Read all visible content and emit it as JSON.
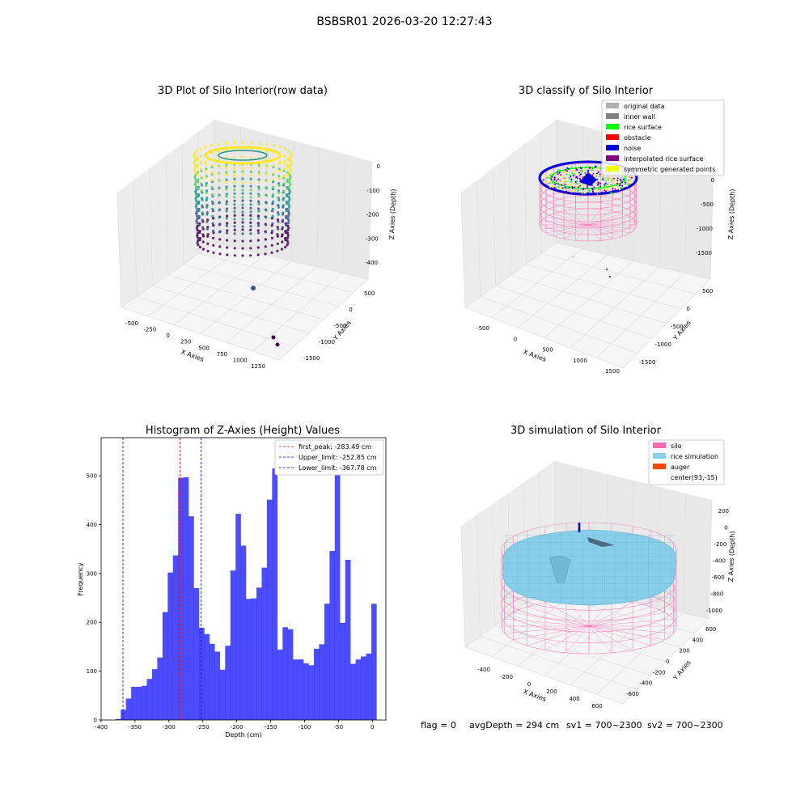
{
  "figure": {
    "suptitle": "BSBSR01 2026-03-20 12:27:43",
    "footer": {
      "flag": "flag = 0",
      "avg": "avgDepth = 294 cm",
      "sv1": "sv1 = 700~2300",
      "sv2": "sv2 = 700~2300"
    }
  },
  "panels": {
    "raw": {
      "title": "3D Plot of Silo Interior(row data)",
      "xlabel": "X Axies",
      "ylabel": "Y Axies",
      "zlabel": "Z Axies (Depth)",
      "xticks": [
        "-500",
        "-250",
        "0",
        "250",
        "500",
        "750",
        "1000",
        "1250"
      ],
      "yticks": [
        "500",
        "0",
        "-500",
        "-1000",
        "-1500"
      ],
      "zticks": [
        "0",
        "-100",
        "-200",
        "-300",
        "-400"
      ],
      "colormap": [
        "#440154",
        "#3b528b",
        "#21918c",
        "#5ec962",
        "#fde725"
      ]
    },
    "classify": {
      "title": "3D classify of Silo Interior",
      "xlabel": "X Axies",
      "ylabel": "Y Axies",
      "zlabel": "Z Axies (Depth)",
      "xticks": [
        "-500",
        "0",
        "500",
        "1000",
        "1500"
      ],
      "yticks": [
        "500",
        "0",
        "-500",
        "-1000",
        "-1500"
      ],
      "zticks": [
        "0",
        "-500",
        "-1000",
        "-1500"
      ],
      "legend": [
        {
          "label": "original data",
          "color": "#b0b0b0"
        },
        {
          "label": "inner wall",
          "color": "#808080"
        },
        {
          "label": "rice surface",
          "color": "#00ff00"
        },
        {
          "label": "obstacle",
          "color": "#ff0000"
        },
        {
          "label": "noise",
          "color": "#0000dd"
        },
        {
          "label": "interpolated rice surface",
          "color": "#800080"
        },
        {
          "label": "symmetric generated points",
          "color": "#ffff00"
        }
      ]
    },
    "simulation": {
      "title": "3D simulation of Silo Interior",
      "xlabel": "X Axies",
      "ylabel": "Y Axies",
      "zlabel": "Z Axies (Depth)",
      "xticks": [
        "-400",
        "-200",
        "0",
        "200",
        "400",
        "600"
      ],
      "yticks": [
        "600",
        "400",
        "200",
        "0",
        "-200",
        "-400",
        "-600"
      ],
      "zticks": [
        "200",
        "0",
        "-200",
        "-400",
        "-600",
        "-800",
        "-1000"
      ],
      "legend": [
        {
          "label": "silo",
          "color": "#ff69b4"
        },
        {
          "label": "rice simulation",
          "color": "#87ceeb"
        },
        {
          "label": "auger",
          "color": "#ff4500"
        },
        {
          "label": "center(93,-15)",
          "color": ""
        }
      ]
    }
  },
  "chart_data": {
    "type": "bar",
    "title": "Histogram of Z-Axies (Height) Values",
    "xlabel": "Depth (cm)",
    "ylabel": "Frequency",
    "xlim": [
      -400,
      20
    ],
    "ylim": [
      0,
      578
    ],
    "xticks": [
      -400,
      -350,
      -300,
      -250,
      -200,
      -150,
      -100,
      -50,
      0
    ],
    "yticks": [
      0,
      100,
      200,
      300,
      400,
      500
    ],
    "bar_color": "#0000ff",
    "bin_start": -378.8,
    "bin_width": 7.7,
    "values": [
      2,
      21,
      44,
      68,
      68,
      70,
      84,
      104,
      128,
      221,
      302,
      337,
      496,
      497,
      417,
      270,
      189,
      176,
      156,
      140,
      103,
      152,
      306,
      422,
      357,
      248,
      249,
      271,
      312,
      451,
      515,
      144,
      190,
      186,
      124,
      124,
      116,
      112,
      146,
      155,
      238,
      346,
      540,
      199,
      328,
      115,
      124,
      130,
      136,
      238
    ],
    "lines": [
      {
        "label": "first_peak: -283.49 cm",
        "x": -283.49,
        "color": "#ff0000"
      },
      {
        "label": "Upper_limit: -252.85 cm",
        "x": -252.85,
        "color": "#0000ff"
      },
      {
        "label": "Lower_limit: -367.78 cm",
        "x": -367.78,
        "color": "#0000ff"
      }
    ],
    "legend_position": "upper right"
  }
}
